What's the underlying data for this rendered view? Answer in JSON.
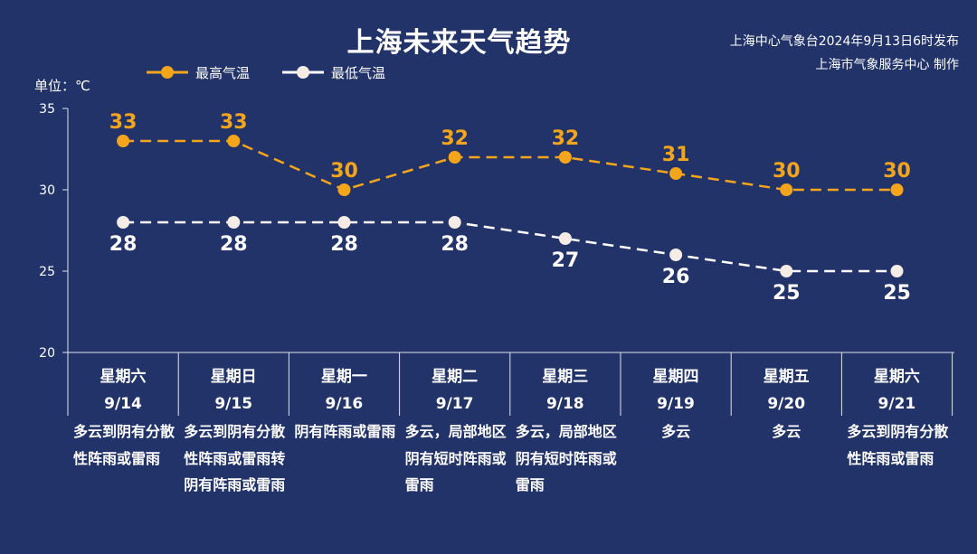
{
  "header": {
    "title": "上海未来天气趋势",
    "source_line1": "上海中心气象台2024年9月13日6时发布",
    "source_line2": "上海市气象服务中心 制作",
    "unit_label": "单位：℃"
  },
  "legend": {
    "high_label": "最高气温",
    "low_label": "最低气温"
  },
  "colors": {
    "background": "#22336a",
    "high": "#f5a51c",
    "low": "#ffffff",
    "low_marker": "#f6ece6"
  },
  "chart_data": {
    "type": "line",
    "categories": [
      "9/14",
      "9/15",
      "9/16",
      "9/17",
      "9/18",
      "9/19",
      "9/20",
      "9/21"
    ],
    "weekdays": [
      "星期六",
      "星期日",
      "星期一",
      "星期二",
      "星期三",
      "星期四",
      "星期五",
      "星期六"
    ],
    "series": [
      {
        "name": "最高气温",
        "values": [
          33,
          33,
          30,
          32,
          32,
          31,
          30,
          30
        ]
      },
      {
        "name": "最低气温",
        "values": [
          28,
          28,
          28,
          28,
          27,
          26,
          25,
          25
        ]
      }
    ],
    "ylim": [
      20,
      35
    ],
    "yticks": [
      20,
      25,
      30,
      35
    ],
    "weather": [
      "多云到阴有分散性阵雨或雷雨",
      "多云到阴有分散性阵雨或雷雨转阴有阵雨或雷雨",
      "阴有阵雨或雷雨",
      "多云，局部地区阴有短时阵雨或雷雨",
      "多云，局部地区阴有短时阵雨或雷雨",
      "多云",
      "多云",
      "多云到阴有分散性阵雨或雷雨"
    ]
  }
}
